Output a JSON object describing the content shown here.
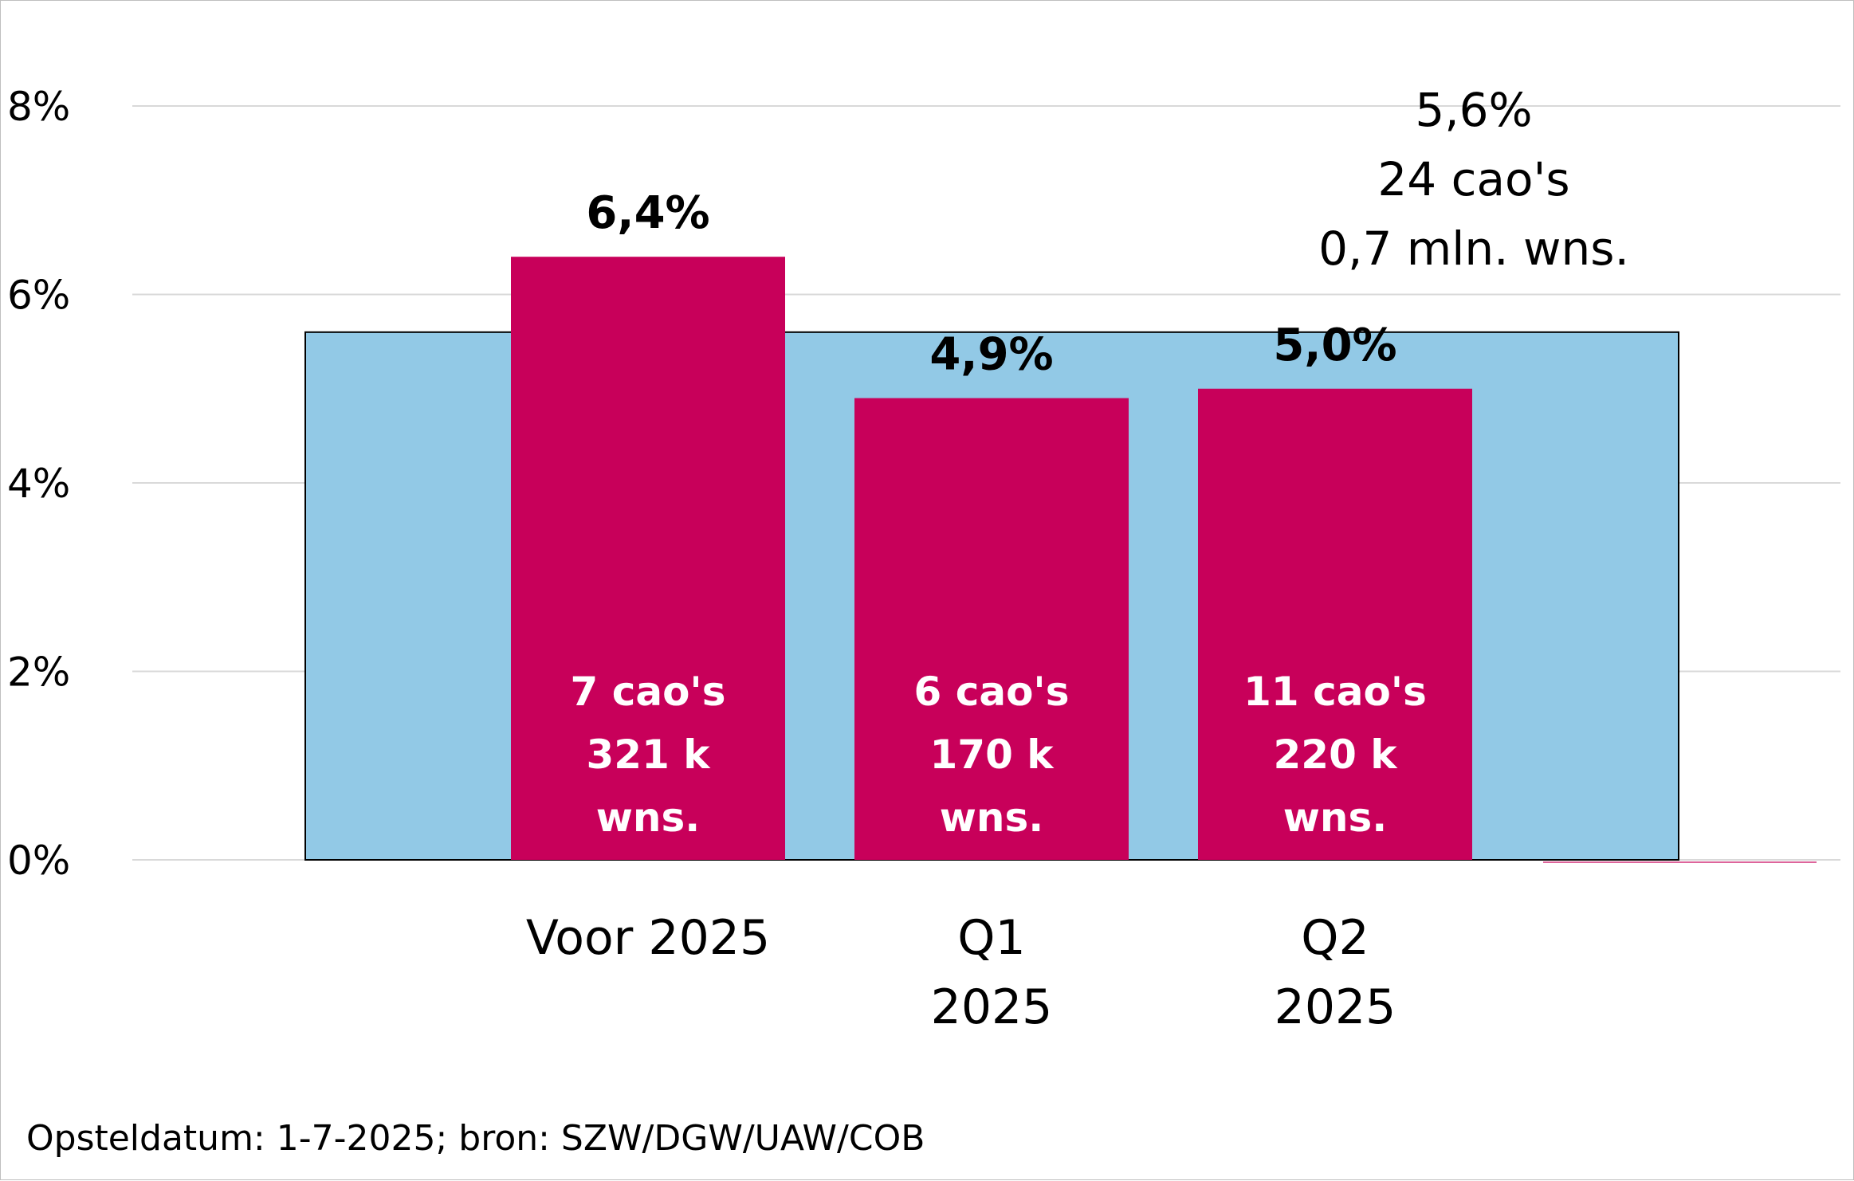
{
  "chart_data": {
    "type": "bar",
    "categories": [
      [
        "Voor 2025"
      ],
      [
        "Q1",
        "2025"
      ],
      [
        "Q2",
        "2025"
      ]
    ],
    "values": [
      6.4,
      4.9,
      5.0
    ],
    "value_labels": [
      "6,4%",
      "4,9%",
      "5,0%"
    ],
    "bar_notes": [
      [
        "7 cao's",
        "321 k",
        "wns."
      ],
      [
        "6 cao's",
        "170 k",
        "wns."
      ],
      [
        "11 cao's",
        "220 k",
        "wns."
      ]
    ],
    "total": {
      "value": 5.6,
      "lines": [
        "5,6%",
        "24 cao's",
        "0,7 mln. wns."
      ]
    },
    "yticks": [
      {
        "value": 0,
        "label": "0%"
      },
      {
        "value": 2,
        "label": "2%"
      },
      {
        "value": 4,
        "label": "4%"
      },
      {
        "value": 6,
        "label": "6%"
      },
      {
        "value": 8,
        "label": "8%"
      }
    ],
    "ylim": [
      0,
      8
    ],
    "grid": true,
    "colors": {
      "bar": "#c8005a",
      "total": "#92c9e6",
      "grid": "#d9d9d9"
    }
  },
  "footer": {
    "source": "Opsteldatum: 1-7-2025; bron: SZW/DGW/UAW/COB"
  }
}
